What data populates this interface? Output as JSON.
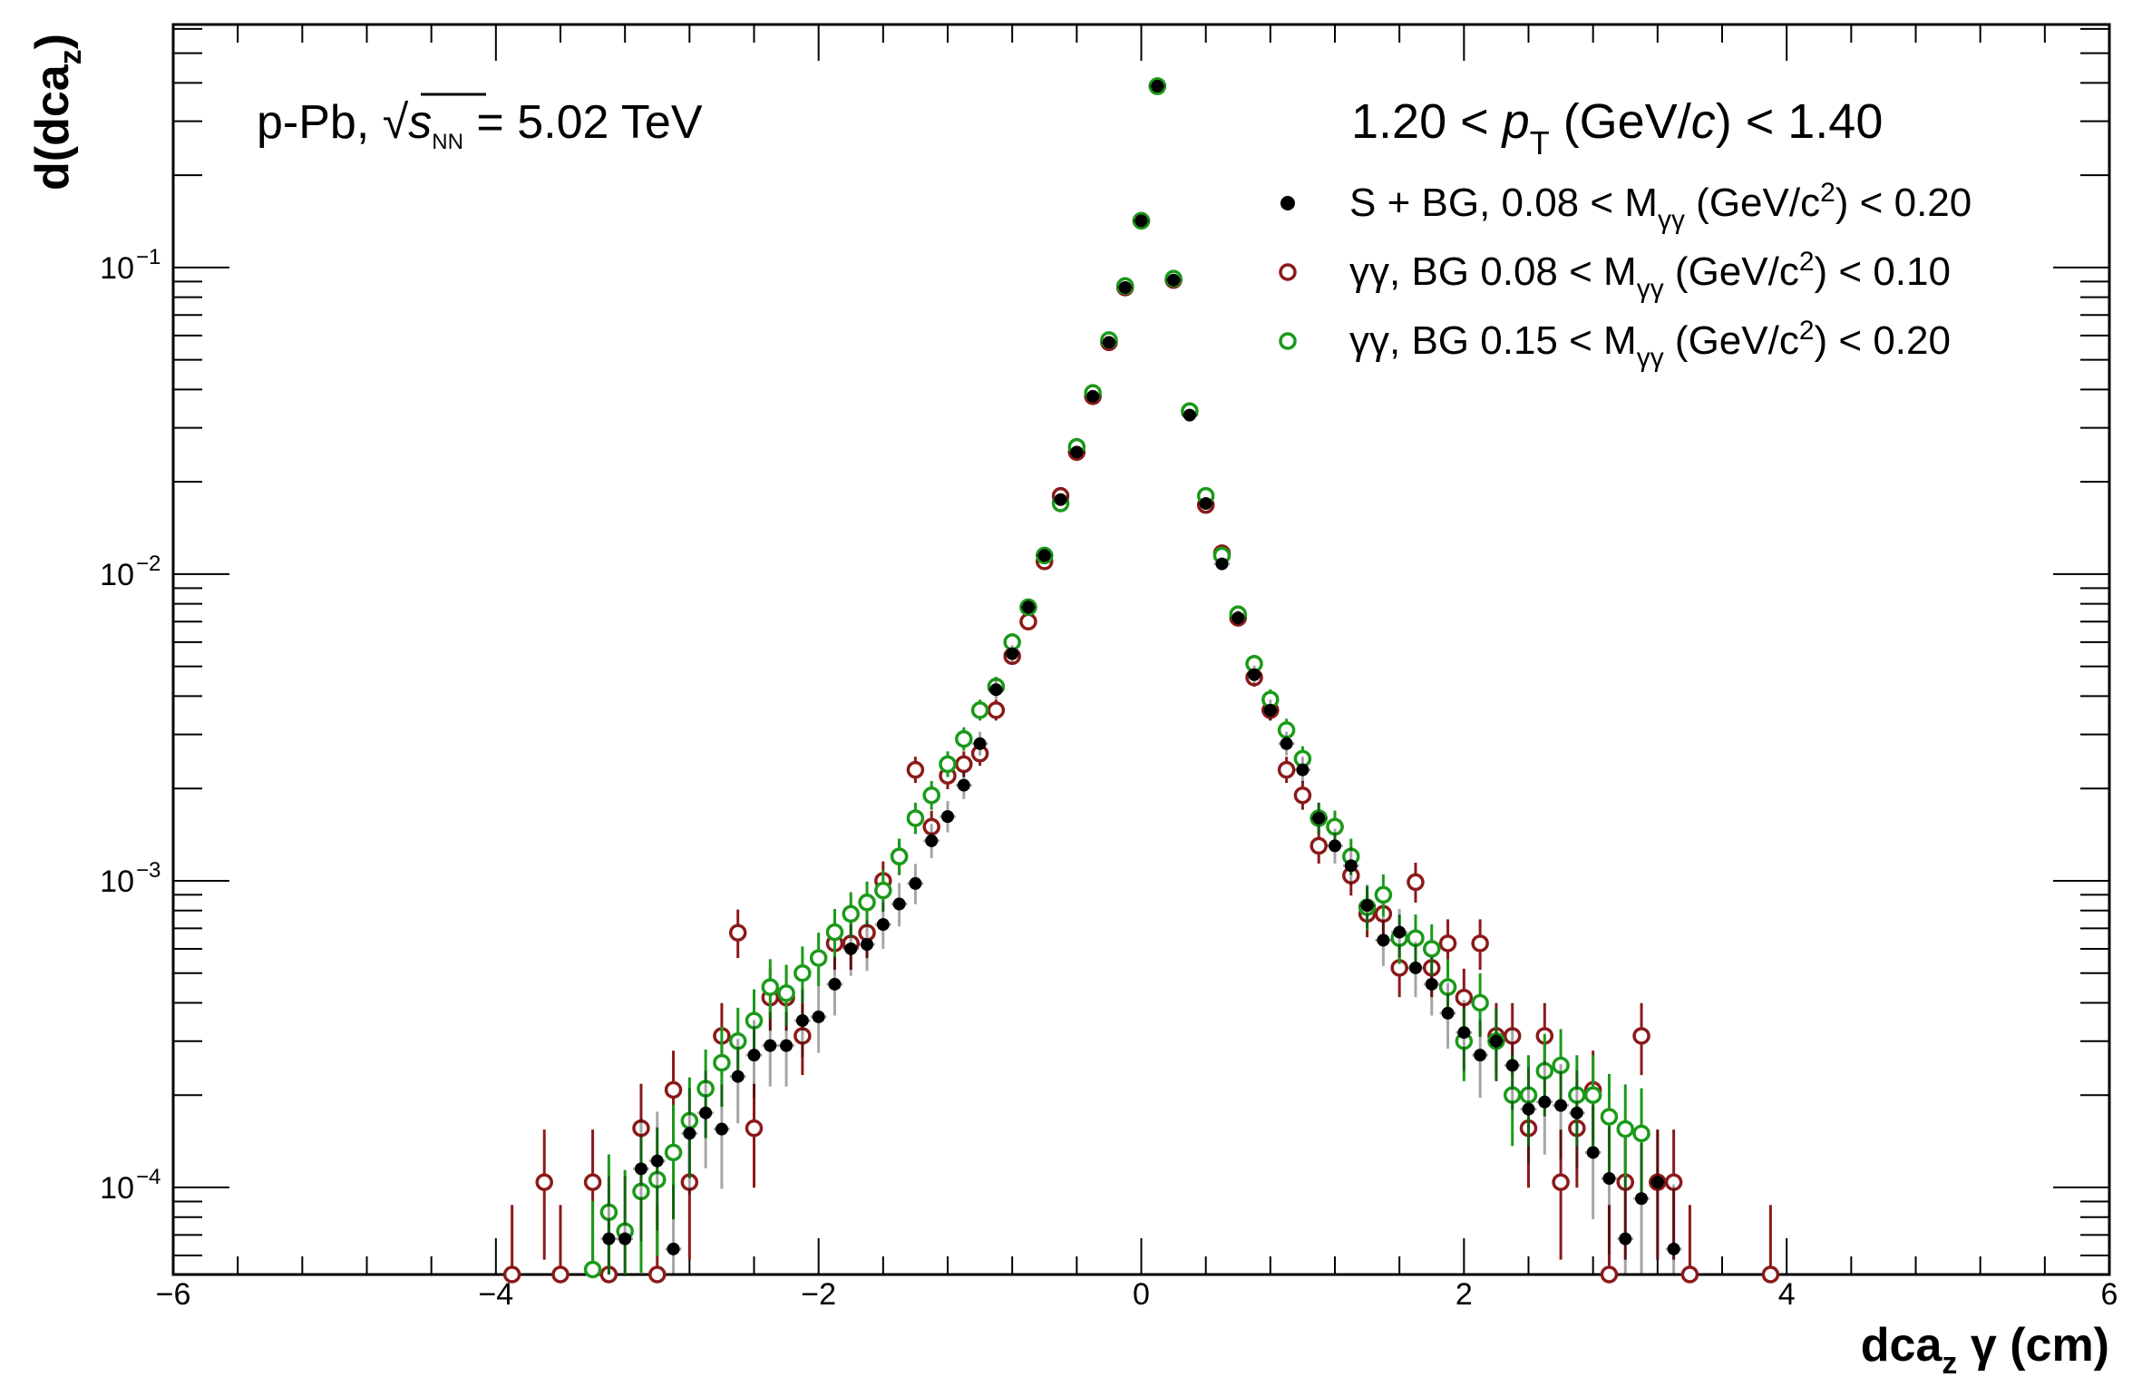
{
  "chart_data": {
    "type": "scatter",
    "title": "",
    "xlabel": "dca",
    "xlabel_sub": "z",
    "xlabel_suffix": " γ (cm)",
    "ylabel": "d(dca",
    "ylabel_sub": "z",
    "ylabel_close": ")",
    "xlim": [
      -6,
      6
    ],
    "ylim": [
      5.2e-05,
      0.62
    ],
    "yscale": "log",
    "x_ticks": [
      -6,
      -4,
      -2,
      0,
      2,
      4,
      6
    ],
    "x_tick_labels": [
      "−6",
      "−4",
      "−2",
      "0",
      "2",
      "4",
      "6"
    ],
    "y_ticks": [
      0.1,
      0.01,
      0.001,
      0.0001
    ],
    "y_tick_base": "10",
    "y_tick_exponents": [
      "−1",
      "−2",
      "−3",
      "−4"
    ],
    "grid": false,
    "legend_position": "top-right",
    "annotations": {
      "system": "p-Pb, ",
      "sqrt": "√",
      "s": "s",
      "s_sub": "NN",
      "energy": " = 5.02 TeV",
      "pt_low": "1.20 < ",
      "pt_p": "p",
      "pt_sub": "T",
      "pt_unit_open": " (GeV/",
      "pt_c": "c",
      "pt_high": ") < 1.40"
    },
    "series": [
      {
        "name": "S + BG, 0.08 < M",
        "name_sub": "γγ",
        "name_rest": " (GeV/c",
        "name_sup": "2",
        "name_end": ") < 0.20",
        "color": "#000000",
        "marker": "filled-circle",
        "x": [
          -3.3,
          -3.2,
          -3.1,
          -3.0,
          -2.9,
          -2.8,
          -2.7,
          -2.6,
          -2.5,
          -2.4,
          -2.3,
          -2.2,
          -2.1,
          -2.0,
          -1.9,
          -1.8,
          -1.7,
          -1.6,
          -1.5,
          -1.4,
          -1.3,
          -1.2,
          -1.1,
          -1.0,
          -0.9,
          -0.8,
          -0.7,
          -0.6,
          -0.5,
          -0.4,
          -0.3,
          -0.2,
          -0.1,
          0.0,
          0.1,
          0.2,
          0.3,
          0.4,
          0.5,
          0.6,
          0.7,
          0.8,
          0.9,
          1.0,
          1.1,
          1.2,
          1.3,
          1.4,
          1.5,
          1.6,
          1.7,
          1.8,
          1.9,
          2.0,
          2.1,
          2.2,
          2.3,
          2.4,
          2.5,
          2.6,
          2.7,
          2.8,
          2.9,
          3.0,
          3.1,
          3.2,
          3.3
        ],
        "y": [
          6.8e-05,
          6.8e-05,
          0.000115,
          0.000122,
          6.3e-05,
          0.00015,
          0.000175,
          0.000155,
          0.00023,
          0.00027,
          0.00029,
          0.00029,
          0.00035,
          0.00036,
          0.00046,
          0.0006,
          0.00062,
          0.00072,
          0.00084,
          0.00098,
          0.00135,
          0.00162,
          0.00205,
          0.0028,
          0.0042,
          0.0055,
          0.0078,
          0.0115,
          0.0175,
          0.025,
          0.038,
          0.057,
          0.086,
          0.142,
          0.39,
          0.091,
          0.033,
          0.017,
          0.0108,
          0.0072,
          0.0047,
          0.0036,
          0.0028,
          0.0023,
          0.0016,
          0.0013,
          0.00112,
          0.00083,
          0.00064,
          0.00068,
          0.00052,
          0.00046,
          0.00037,
          0.00032,
          0.00027,
          0.0003,
          0.00025,
          0.00018,
          0.00019,
          0.000185,
          0.000175,
          0.00013,
          0.000107,
          6.8e-05,
          9.2e-05,
          0.000104,
          6.3e-05
        ]
      },
      {
        "name": "γγ, BG 0.08 < M",
        "name_sub": "γγ",
        "name_rest": " (GeV/c",
        "name_sup": "2",
        "name_end": ") < 0.10",
        "color": "#8b1a1a",
        "marker": "open-circle",
        "x": [
          -3.9,
          -3.7,
          -3.6,
          -3.4,
          -3.3,
          -3.1,
          -3.0,
          -2.9,
          -2.8,
          -2.6,
          -2.5,
          -2.4,
          -2.3,
          -2.2,
          -2.1,
          -1.9,
          -1.8,
          -1.7,
          -1.6,
          -1.5,
          -1.4,
          -1.3,
          -1.2,
          -1.1,
          -1.0,
          -0.9,
          -0.8,
          -0.7,
          -0.6,
          -0.5,
          -0.4,
          -0.3,
          -0.2,
          -0.1,
          0.0,
          0.1,
          0.2,
          0.3,
          0.4,
          0.5,
          0.6,
          0.7,
          0.8,
          0.9,
          1.0,
          1.1,
          1.2,
          1.3,
          1.4,
          1.5,
          1.6,
          1.7,
          1.8,
          1.9,
          2.0,
          2.1,
          2.2,
          2.3,
          2.4,
          2.5,
          2.6,
          2.7,
          2.8,
          2.9,
          3.0,
          3.1,
          3.2,
          3.3,
          3.4,
          3.9
        ],
        "y": [
          5.2e-05,
          0.000104,
          5.2e-05,
          0.000104,
          5.2e-05,
          0.000156,
          5.2e-05,
          0.000208,
          0.000104,
          0.000312,
          0.000677,
          0.000156,
          0.000416,
          0.000416,
          0.000312,
          0.000625,
          0.000625,
          0.000677,
          0.001,
          0.0012,
          0.0023,
          0.0015,
          0.0022,
          0.0024,
          0.0026,
          0.0036,
          0.0054,
          0.007,
          0.011,
          0.018,
          0.025,
          0.038,
          0.057,
          0.086,
          0.142,
          0.39,
          0.091,
          0.034,
          0.0168,
          0.0117,
          0.0072,
          0.0046,
          0.0036,
          0.0023,
          0.0019,
          0.0013,
          0.0015,
          0.00104,
          0.00078,
          0.00078,
          0.00052,
          0.00099,
          0.00052,
          0.000625,
          0.000416,
          0.000625,
          0.000312,
          0.000312,
          0.000156,
          0.000312,
          0.000104,
          0.000156,
          0.000208,
          5.2e-05,
          0.000104,
          0.000312,
          0.000104,
          0.000104,
          5.2e-05,
          5.2e-05
        ]
      },
      {
        "name": "γγ, BG 0.15 < M",
        "name_sub": "γγ",
        "name_rest": " (GeV/c",
        "name_sup": "2",
        "name_end": ") < 0.20",
        "color": "#1a9a1a",
        "marker": "open-circle",
        "x": [
          -3.4,
          -3.3,
          -3.2,
          -3.1,
          -3.0,
          -2.9,
          -2.8,
          -2.7,
          -2.6,
          -2.5,
          -2.4,
          -2.3,
          -2.2,
          -2.1,
          -2.0,
          -1.9,
          -1.8,
          -1.7,
          -1.6,
          -1.5,
          -1.4,
          -1.3,
          -1.2,
          -1.1,
          -1.0,
          -0.9,
          -0.8,
          -0.7,
          -0.6,
          -0.5,
          -0.4,
          -0.3,
          -0.2,
          -0.1,
          0.0,
          0.1,
          0.2,
          0.3,
          0.4,
          0.5,
          0.6,
          0.7,
          0.8,
          0.9,
          1.0,
          1.1,
          1.2,
          1.3,
          1.4,
          1.5,
          1.6,
          1.7,
          1.8,
          1.9,
          2.0,
          2.1,
          2.2,
          2.3,
          2.4,
          2.5,
          2.6,
          2.7,
          2.8,
          2.9,
          3.0,
          3.1
        ],
        "y": [
          5.4e-05,
          8.3e-05,
          7.2e-05,
          9.7e-05,
          0.000106,
          0.00013,
          0.000165,
          0.00021,
          0.000255,
          0.0003,
          0.00035,
          0.00045,
          0.00043,
          0.0005,
          0.00056,
          0.00068,
          0.00078,
          0.00085,
          0.00093,
          0.0012,
          0.0016,
          0.0019,
          0.0024,
          0.0029,
          0.0036,
          0.0043,
          0.006,
          0.0078,
          0.0115,
          0.017,
          0.026,
          0.039,
          0.058,
          0.087,
          0.142,
          0.39,
          0.092,
          0.034,
          0.018,
          0.0115,
          0.0074,
          0.0051,
          0.0039,
          0.0031,
          0.0025,
          0.0016,
          0.0015,
          0.0012,
          0.00082,
          0.0009,
          0.00065,
          0.00065,
          0.0006,
          0.00045,
          0.0003,
          0.0004,
          0.0003,
          0.0002,
          0.0002,
          0.00024,
          0.00025,
          0.0002,
          0.0002,
          0.00017,
          0.000155,
          0.00015
        ]
      }
    ]
  }
}
